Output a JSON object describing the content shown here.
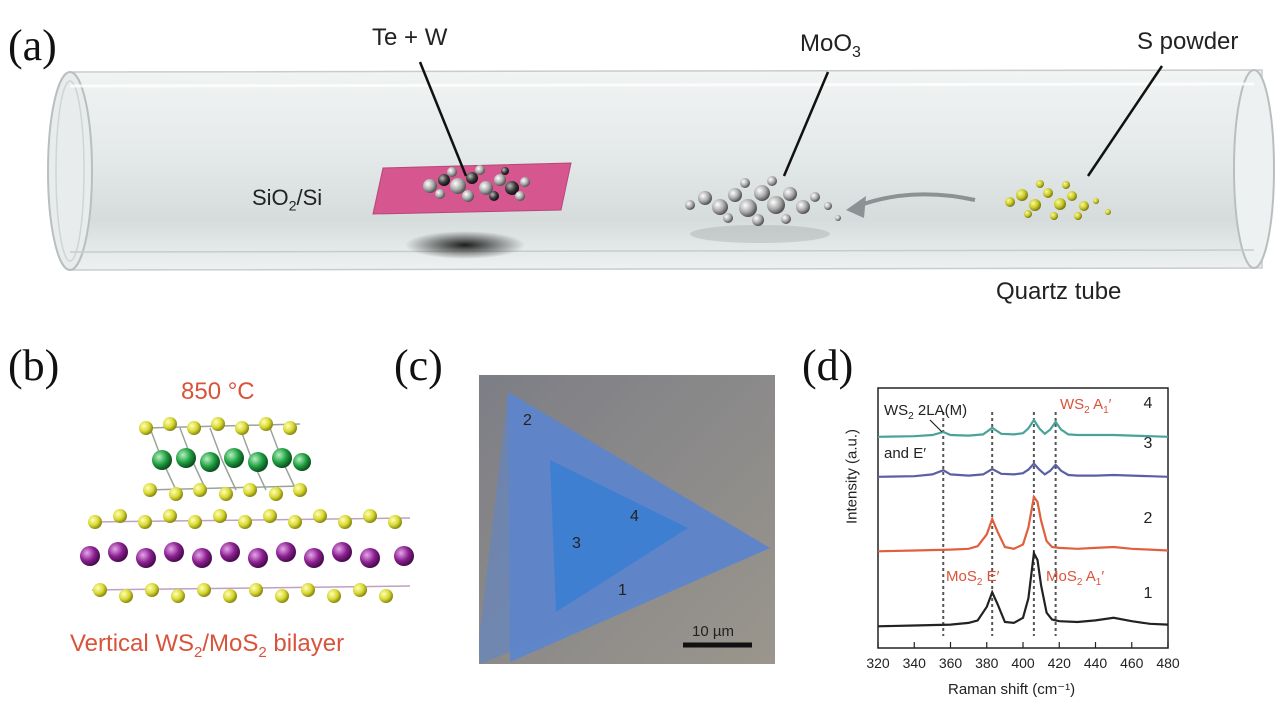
{
  "panels": {
    "a": {
      "letter": "(a)",
      "label_tew": "Te + W",
      "label_moo3_base": "MoO",
      "label_moo3_sub": "3",
      "label_spowder": "S powder",
      "label_substrate_a": "SiO",
      "label_substrate_sub": "2",
      "label_substrate_b": "/Si",
      "label_tube": "Quartz tube"
    },
    "b": {
      "letter": "(b)",
      "temperature": "850 °C",
      "caption_a": "Vertical WS",
      "caption_sub1": "2",
      "caption_b": "/MoS",
      "caption_sub2": "2",
      "caption_c": " bilayer"
    },
    "c": {
      "letter": "(c)",
      "markers": [
        "2",
        "4",
        "3",
        "1"
      ],
      "scalebar": "10 µm"
    },
    "d": {
      "letter": "(d)"
    }
  },
  "colors": {
    "substrate": "#d6578f",
    "s_powder": "#c8c829",
    "mos2_atom": "#8a1f8f",
    "ws2_atom": "#1e9e3e",
    "annotation_red": "#d9533b",
    "trace_1": "#222222",
    "trace_2": "#e0603e",
    "trace_3": "#5a5fa6",
    "trace_4": "#4aa39a",
    "flake_inner": "#3f7fd1",
    "flake_outer": "#5f86c8",
    "optical_bg": "#8e8d89"
  },
  "chart_data": {
    "type": "line",
    "xlabel": "Raman shift (cm⁻¹)",
    "ylabel": "Intensity (a.u.)",
    "xlim": [
      320,
      480
    ],
    "xticks": [
      320,
      340,
      360,
      380,
      400,
      420,
      440,
      460,
      480
    ],
    "grid": false,
    "reference_lines": [
      356,
      383,
      406,
      418
    ],
    "series": [
      {
        "name": "1",
        "x": [
          320,
          340,
          360,
          370,
          375,
          380,
          383,
          386,
          390,
          395,
          400,
          403,
          406,
          408,
          410,
          413,
          416,
          420,
          430,
          440,
          450,
          460,
          470,
          480
        ],
        "y": [
          0.02,
          0.03,
          0.04,
          0.06,
          0.09,
          0.25,
          0.42,
          0.28,
          0.07,
          0.06,
          0.12,
          0.35,
          0.88,
          0.8,
          0.5,
          0.18,
          0.1,
          0.08,
          0.07,
          0.09,
          0.12,
          0.08,
          0.05,
          0.04
        ]
      },
      {
        "name": "2",
        "x": [
          320,
          340,
          360,
          370,
          375,
          380,
          383,
          386,
          390,
          395,
          400,
          403,
          406,
          408,
          410,
          413,
          416,
          420,
          430,
          440,
          450,
          460,
          470,
          480
        ],
        "y": [
          0.02,
          0.03,
          0.04,
          0.05,
          0.08,
          0.22,
          0.4,
          0.25,
          0.07,
          0.05,
          0.1,
          0.3,
          0.66,
          0.6,
          0.38,
          0.14,
          0.07,
          0.06,
          0.05,
          0.06,
          0.07,
          0.05,
          0.04,
          0.03
        ]
      },
      {
        "name": "3",
        "x": [
          320,
          340,
          350,
          356,
          360,
          370,
          378,
          383,
          388,
          395,
          400,
          403,
          406,
          409,
          412,
          415,
          418,
          421,
          425,
          430,
          440,
          450,
          460,
          470,
          480
        ],
        "y": [
          0.02,
          0.03,
          0.06,
          0.13,
          0.06,
          0.04,
          0.06,
          0.15,
          0.07,
          0.06,
          0.08,
          0.14,
          0.24,
          0.14,
          0.06,
          0.12,
          0.22,
          0.12,
          0.05,
          0.04,
          0.04,
          0.05,
          0.04,
          0.03,
          0.02
        ]
      },
      {
        "name": "4",
        "x": [
          320,
          340,
          350,
          356,
          360,
          370,
          378,
          383,
          388,
          395,
          400,
          403,
          406,
          409,
          412,
          415,
          418,
          421,
          425,
          430,
          440,
          450,
          460,
          470,
          480
        ],
        "y": [
          0.02,
          0.03,
          0.05,
          0.1,
          0.05,
          0.04,
          0.06,
          0.17,
          0.07,
          0.06,
          0.08,
          0.16,
          0.3,
          0.16,
          0.07,
          0.14,
          0.27,
          0.14,
          0.06,
          0.05,
          0.05,
          0.05,
          0.04,
          0.03,
          0.02
        ]
      }
    ],
    "annotations": {
      "ws2_2la_a": "WS",
      "ws2_2la_sub": "2",
      "ws2_2la_b": " 2LA(M)",
      "and_e": "and E′",
      "ws2_a1_a": "WS",
      "ws2_a1_sub": "2",
      "ws2_a1_b": " A",
      "ws2_a1_sub2": "1",
      "ws2_a1_c": "′",
      "mos2_e_a": "MoS",
      "mos2_e_sub": "2",
      "mos2_e_b": " E′",
      "mos2_a1_a": "MoS",
      "mos2_a1_sub": "2",
      "mos2_a1_b": " A",
      "mos2_a1_sub2": "1",
      "mos2_a1_c": "′"
    }
  }
}
